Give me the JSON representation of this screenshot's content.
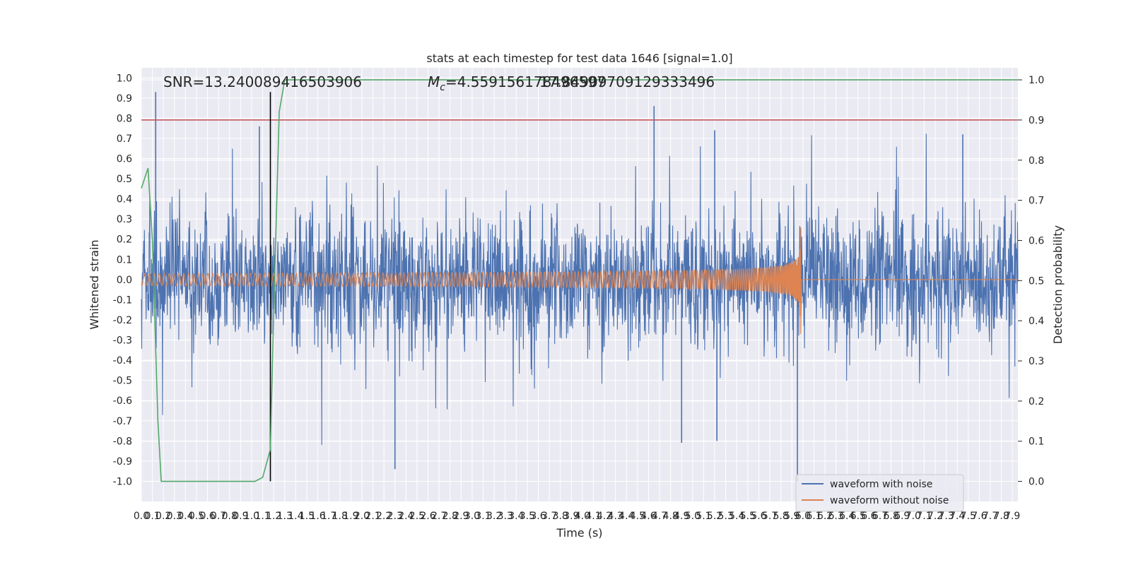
{
  "chart_data": {
    "type": "line",
    "title": "stats at each timestep for test data 1646 [signal=1.0]",
    "xlabel": "Time (s)",
    "ylabel": "Whitened strain",
    "y2label": "Detection probability",
    "xlim": [
      0.0,
      7.95
    ],
    "ylim": [
      -1.1,
      1.05
    ],
    "y2lim": [
      -0.05,
      1.03
    ],
    "x_tick_labels": [
      "0.0",
      "0.1",
      "0.2",
      "0.3",
      "0.4",
      "0.5",
      "0.6",
      "0.7",
      "0.8",
      "0.9",
      "1.0",
      "1.1",
      "1.2",
      "1.3",
      "1.4",
      "1.5",
      "1.6",
      "1.7",
      "1.8",
      "1.9",
      "2.0",
      "2.1",
      "2.2",
      "2.3",
      "2.4",
      "2.5",
      "2.6",
      "2.7",
      "2.8",
      "2.9",
      "3.0",
      "3.1",
      "3.2",
      "3.3",
      "3.4",
      "3.5",
      "3.6",
      "3.7",
      "3.8",
      "3.9",
      "4.0",
      "4.1",
      "4.2",
      "4.3",
      "4.4",
      "4.5",
      "4.6",
      "4.7",
      "4.8",
      "4.9",
      "5.0",
      "5.1",
      "5.2",
      "5.3",
      "5.4",
      "5.5",
      "5.6",
      "5.7",
      "5.8",
      "5.9",
      "6.0",
      "6.1",
      "6.2",
      "6.3",
      "6.4",
      "6.5",
      "6.6",
      "6.7",
      "6.8",
      "6.9",
      "7.0",
      "7.1",
      "7.2",
      "7.3",
      "7.4",
      "7.5",
      "7.6",
      "7.7",
      "7.8",
      "7.9"
    ],
    "y_tick_labels": [
      "1.0",
      "0.9",
      "0.8",
      "0.7",
      "0.6",
      "0.5",
      "0.4",
      "0.3",
      "0.2",
      "0.1",
      "0.0",
      "-0.1",
      "-0.2",
      "-0.3",
      "-0.4",
      "-0.5",
      "-0.6",
      "-0.7",
      "-0.8",
      "-0.9",
      "-1.0"
    ],
    "y2_tick_labels": [
      "1.0",
      "0.9",
      "0.8",
      "0.7",
      "0.6",
      "0.5",
      "0.4",
      "0.3",
      "0.2",
      "0.1",
      "0.0"
    ],
    "annotations": {
      "snr": "SNR=13.240089416503906",
      "mc_symbol": "M",
      "mc_sub": "c",
      "mc_value": "=4.559156178496597",
      "mc_overlap": "17.84909709129333496"
    },
    "series": [
      {
        "name": "waveform with noise",
        "color": "#4c72b0",
        "axis": "left",
        "envelope_amplitude": 0.3,
        "spike_max": 0.93,
        "spike_min": -1.0
      },
      {
        "name": "waveform without noise",
        "color": "#dd8452",
        "axis": "left",
        "chirp_start_amplitude": 0.03,
        "merger_time": 5.98,
        "merger_peak": 0.26,
        "merger_trough": -0.27,
        "post_merger_level": 0.0
      },
      {
        "name": "detection probability",
        "color": "#55a868",
        "axis": "right",
        "x": [
          0.0,
          0.06,
          0.1,
          0.15,
          0.18,
          1.03,
          1.1,
          1.17,
          1.2,
          1.25,
          1.3,
          7.95
        ],
        "y": [
          0.73,
          0.78,
          0.6,
          0.15,
          0.0,
          0.0,
          0.01,
          0.08,
          0.42,
          0.92,
          1.0,
          1.0
        ]
      }
    ],
    "threshold": {
      "value": 0.9,
      "axis": "right",
      "color": "#c44e52"
    },
    "event_marker": {
      "x": 1.17,
      "y_from": -1.0,
      "y_to": 0.93,
      "color": "#000000"
    },
    "legend": {
      "position": "lower-right",
      "entries": [
        "waveform with noise",
        "waveform without noise"
      ]
    }
  }
}
